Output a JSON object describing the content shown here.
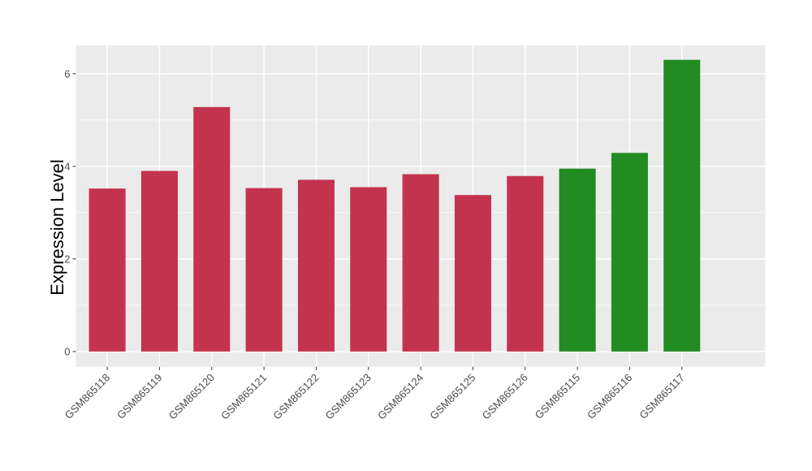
{
  "page": {
    "background": "#FFFFFF"
  },
  "chart_data": {
    "type": "bar",
    "title": "",
    "xlabel": "",
    "ylabel": "Expression Level",
    "categories": [
      "GSM865118",
      "GSM865119",
      "GSM865120",
      "GSM865121",
      "GSM865122",
      "GSM865123",
      "GSM865124",
      "GSM865125",
      "GSM865126",
      "GSM865115",
      "GSM865116",
      "GSM865117"
    ],
    "values": [
      3.52,
      3.9,
      5.28,
      3.53,
      3.71,
      3.55,
      3.83,
      3.38,
      3.79,
      3.95,
      4.29,
      6.3
    ],
    "bar_colors": [
      "#C3334D",
      "#C3334D",
      "#C3334D",
      "#C3334D",
      "#C3334D",
      "#C3334D",
      "#C3334D",
      "#C3334D",
      "#C3334D",
      "#228B22",
      "#228B22",
      "#228B22"
    ],
    "group_colors": {
      "red_group": "#C3334D",
      "green_group": "#228B22"
    },
    "yticks": [
      0,
      2,
      4,
      6
    ],
    "yticks_minor": [
      1,
      3,
      5
    ],
    "ylim": [
      -0.33,
      6.61
    ],
    "x_tick_rotation": 45,
    "grid": "major+minor",
    "legend_position": "none",
    "style": {
      "panel_bg": "#EBEBEB",
      "grid_major_color": "#FFFFFF",
      "grid_minor_color": "#FFFFFF",
      "axis_text_color": "#4D4D4D",
      "axis_title_color": "#000000",
      "tick_mark_color": "#333333"
    }
  }
}
